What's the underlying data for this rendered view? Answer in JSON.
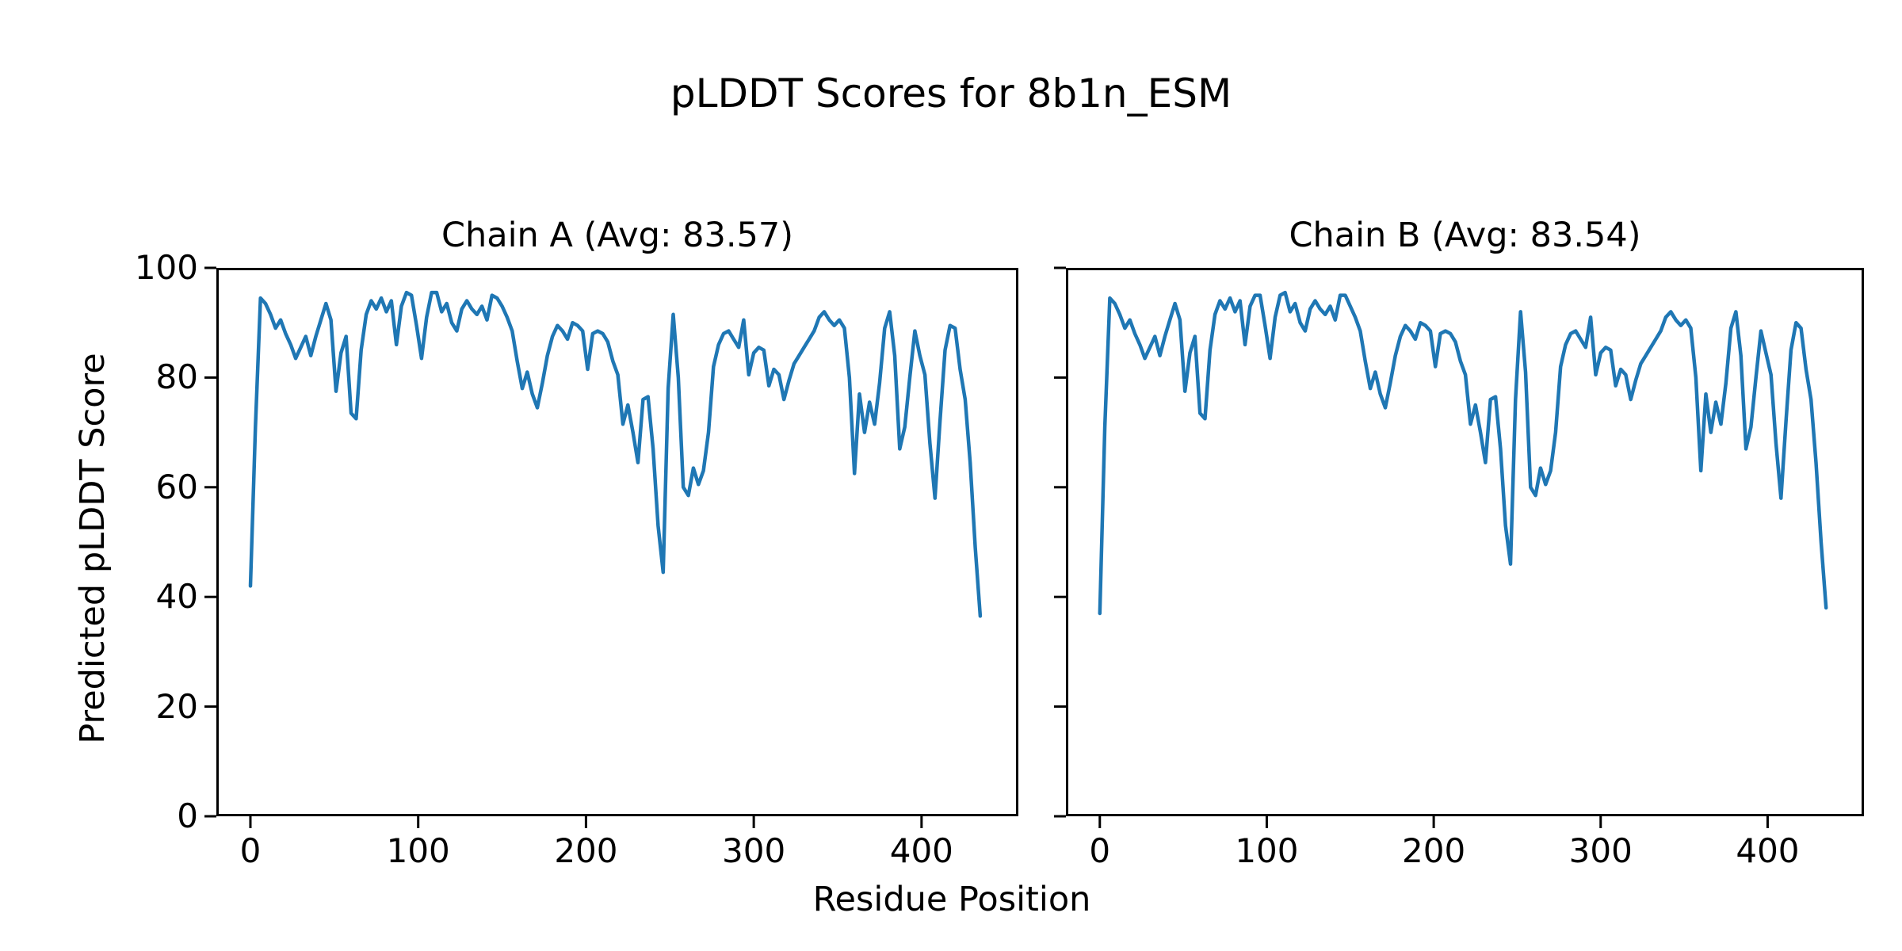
{
  "figure": {
    "suptitle": "pLDDT Scores for 8b1n_ESM",
    "xlabel": "Residue Position",
    "ylabel": "Predicted pLDDT Score"
  },
  "chart_data": {
    "type": "line",
    "title": "pLDDT Scores for 8b1n_ESM",
    "xlabel": "Residue Position",
    "ylabel": "Predicted pLDDT Score",
    "line_color": "#1f77b4",
    "background_color": "#ffffff",
    "grid": false,
    "legend": "none",
    "xlim": [
      -20.3,
      457.7
    ],
    "ylim": [
      0,
      100
    ],
    "xticks": [
      0,
      100,
      200,
      300,
      400
    ],
    "yticks": [
      0,
      20,
      40,
      60,
      80,
      100
    ],
    "x_start": 0,
    "x_step": 3,
    "subplots": [
      {
        "chain": "A",
        "title": "Chain A (Avg: 83.57)",
        "avg": 83.57,
        "values": [
          42,
          71,
          94.5,
          93.5,
          91.5,
          89,
          90.5,
          88,
          86,
          83.5,
          85.5,
          87.5,
          84,
          87.5,
          90.5,
          93.5,
          90.5,
          77.5,
          84.5,
          87.5,
          73.5,
          72.5,
          85,
          91.5,
          94,
          92.5,
          94.5,
          92,
          94,
          86,
          93,
          95.5,
          95,
          89.5,
          83.5,
          91,
          95.5,
          95.5,
          92,
          93.5,
          90,
          88.5,
          92.5,
          94,
          92.5,
          91.5,
          93,
          90.5,
          95,
          94.5,
          93,
          91,
          88.5,
          83,
          78,
          81,
          77,
          74.5,
          79,
          84,
          87.5,
          89.5,
          88.5,
          87,
          90,
          89.5,
          88.5,
          81.5,
          88,
          88.5,
          88,
          86.5,
          83,
          80.5,
          71.5,
          75,
          70,
          64.5,
          76,
          76.5,
          67,
          53,
          44.5,
          78,
          91.5,
          80,
          60,
          58.5,
          63.5,
          60.5,
          63,
          70,
          82,
          86,
          88,
          88.5,
          87,
          85.5,
          90.5,
          80.5,
          84.5,
          85.5,
          85,
          78.5,
          81.5,
          80.5,
          76,
          79.5,
          82.5,
          84,
          85.5,
          87,
          88.5,
          91,
          92,
          90.5,
          89.5,
          90.5,
          89,
          80,
          62.5,
          77,
          70,
          75.5,
          71.5,
          79,
          89,
          92,
          84,
          67,
          71,
          80,
          88.5,
          84,
          80.5,
          68,
          58,
          72,
          85,
          89.5,
          89,
          81.5,
          76,
          64.5,
          49,
          36.5
        ]
      },
      {
        "chain": "B",
        "title": "Chain B (Avg: 83.54)",
        "avg": 83.54,
        "values": [
          37,
          71,
          94.5,
          93.5,
          91.5,
          89,
          90.5,
          88,
          86,
          83.5,
          85.5,
          87.5,
          84,
          87.5,
          90.5,
          93.5,
          90.5,
          77.5,
          84.5,
          87.5,
          73.5,
          72.5,
          85,
          91.5,
          94,
          92.5,
          94.5,
          92,
          94,
          86,
          93,
          95,
          95,
          89.5,
          83.5,
          91,
          95,
          95.5,
          92,
          93.5,
          90,
          88.5,
          92.5,
          94,
          92.5,
          91.5,
          93,
          90.5,
          95,
          95,
          93,
          91,
          88.5,
          83,
          78,
          81,
          77,
          74.5,
          79,
          84,
          87.5,
          89.5,
          88.5,
          87,
          90,
          89.5,
          88.5,
          82,
          88,
          88.5,
          88,
          86.5,
          83,
          80.5,
          71.5,
          75,
          70,
          64.5,
          76,
          76.5,
          67,
          53,
          46,
          76,
          92,
          81,
          60,
          58.5,
          63.5,
          60.5,
          63,
          70,
          82,
          86,
          88,
          88.5,
          87,
          85.5,
          91,
          80.5,
          84.5,
          85.5,
          85,
          78.5,
          81.5,
          80.5,
          76,
          79.5,
          82.5,
          84,
          85.5,
          87,
          88.5,
          91,
          92,
          90.5,
          89.5,
          90.5,
          89,
          80,
          63,
          77,
          70,
          75.5,
          71.5,
          79,
          89,
          92,
          84,
          67,
          71,
          80,
          88.5,
          84.5,
          80.5,
          68,
          58,
          72,
          85,
          90,
          89,
          81.5,
          76,
          64.5,
          50,
          38
        ]
      }
    ]
  }
}
